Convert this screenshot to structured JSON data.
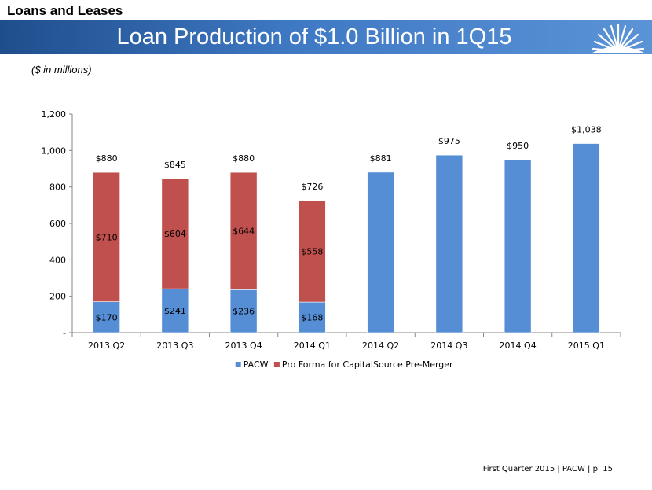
{
  "header": {
    "section_title": "Loans and Leases",
    "banner_title": "Loan Production of $1.0 Billion in 1Q15",
    "units_note": "($ in millions)"
  },
  "colors": {
    "banner": "#3f79c4",
    "pacw": "#558ed5",
    "pro_forma": "#c0504d"
  },
  "chart_data": {
    "type": "bar",
    "stacked": true,
    "categories": [
      "2013 Q2",
      "2013 Q3",
      "2013 Q4",
      "2014 Q1",
      "2014 Q2",
      "2014 Q3",
      "2014 Q4",
      "2015 Q1"
    ],
    "series": [
      {
        "name": "PACW",
        "values": [
          170,
          241,
          236,
          168,
          881,
          975,
          950,
          1038
        ],
        "labels": [
          "$170",
          "$241",
          "$236",
          "$168",
          null,
          null,
          null,
          null
        ]
      },
      {
        "name": "Pro Forma for CapitalSource Pre-Merger",
        "values": [
          710,
          604,
          644,
          558,
          0,
          0,
          0,
          0
        ],
        "labels": [
          "$710",
          "$604",
          "$644",
          "$558",
          null,
          null,
          null,
          null
        ]
      }
    ],
    "totals": [
      "$880",
      "$845",
      "$880",
      "$726",
      "$881",
      "$975",
      "$950",
      "$1,038"
    ],
    "ylim": [
      0,
      1200
    ],
    "yticks": [
      {
        "value": 0,
        "label": "-"
      },
      {
        "value": 200,
        "label": "200"
      },
      {
        "value": 400,
        "label": "400"
      },
      {
        "value": 600,
        "label": "600"
      },
      {
        "value": 800,
        "label": "800"
      },
      {
        "value": 1000,
        "label": "1,000"
      },
      {
        "value": 1200,
        "label": "1,200"
      }
    ],
    "grid": false,
    "legend": "bottom"
  },
  "footer": {
    "text": "First Quarter 2015 | PACW | p. 15"
  }
}
